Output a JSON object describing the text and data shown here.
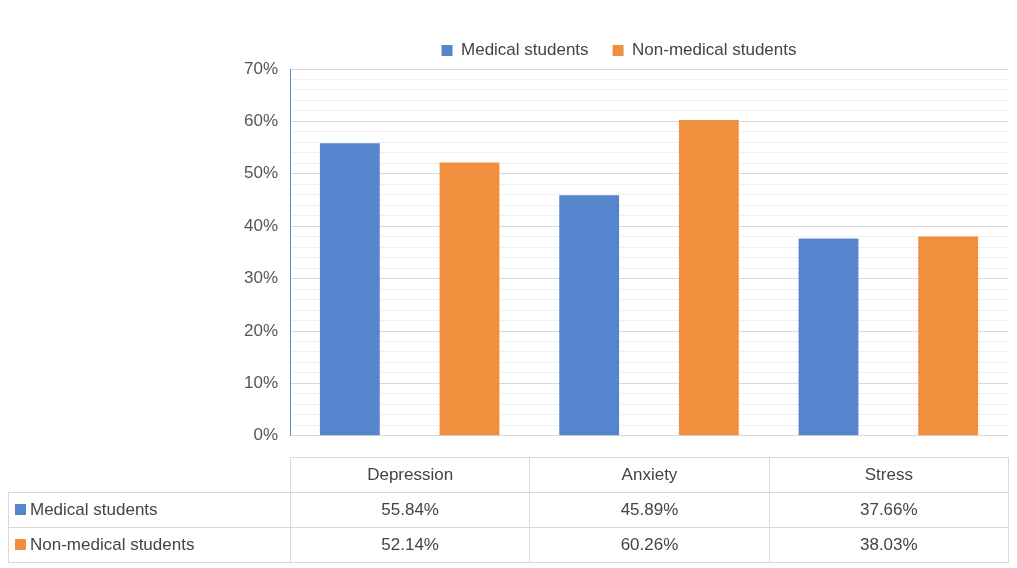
{
  "chart_data": {
    "type": "bar",
    "categories": [
      "Depression",
      "Anxiety",
      "Stress"
    ],
    "series": [
      {
        "name": "Medical students",
        "color": "#5585cd",
        "values": [
          55.84,
          45.89,
          37.66
        ],
        "value_labels": [
          "55.84%",
          "45.89%",
          "37.66%"
        ]
      },
      {
        "name": "Non-medical students",
        "color": "#f0903f",
        "values": [
          52.14,
          60.26,
          38.03
        ],
        "value_labels": [
          "52.14%",
          "60.26%",
          "38.03%"
        ]
      }
    ],
    "ylim": [
      0,
      70
    ],
    "yticks": [
      {
        "value": 0,
        "label": "0%"
      },
      {
        "value": 2,
        "label": null
      },
      {
        "value": 4,
        "label": null
      },
      {
        "value": 6,
        "label": null
      },
      {
        "value": 8,
        "label": null
      },
      {
        "value": 10,
        "label": "10%"
      },
      {
        "value": 12,
        "label": null
      },
      {
        "value": 14,
        "label": null
      },
      {
        "value": 16,
        "label": null
      },
      {
        "value": 18,
        "label": null
      },
      {
        "value": 20,
        "label": "20%"
      },
      {
        "value": 22,
        "label": null
      },
      {
        "value": 24,
        "label": null
      },
      {
        "value": 26,
        "label": null
      },
      {
        "value": 28,
        "label": null
      },
      {
        "value": 30,
        "label": "30%"
      },
      {
        "value": 32,
        "label": null
      },
      {
        "value": 34,
        "label": null
      },
      {
        "value": 36,
        "label": null
      },
      {
        "value": 38,
        "label": null
      },
      {
        "value": 40,
        "label": "40%"
      },
      {
        "value": 42,
        "label": null
      },
      {
        "value": 44,
        "label": null
      },
      {
        "value": 46,
        "label": null
      },
      {
        "value": 48,
        "label": null
      },
      {
        "value": 50,
        "label": "50%"
      },
      {
        "value": 52,
        "label": null
      },
      {
        "value": 54,
        "label": null
      },
      {
        "value": 56,
        "label": null
      },
      {
        "value": 58,
        "label": null
      },
      {
        "value": 60,
        "label": "60%"
      },
      {
        "value": 62,
        "label": null
      },
      {
        "value": 64,
        "label": null
      },
      {
        "value": 66,
        "label": null
      },
      {
        "value": 68,
        "label": null
      },
      {
        "value": 70,
        "label": "70%"
      }
    ],
    "grid": "y",
    "legend": "top"
  }
}
